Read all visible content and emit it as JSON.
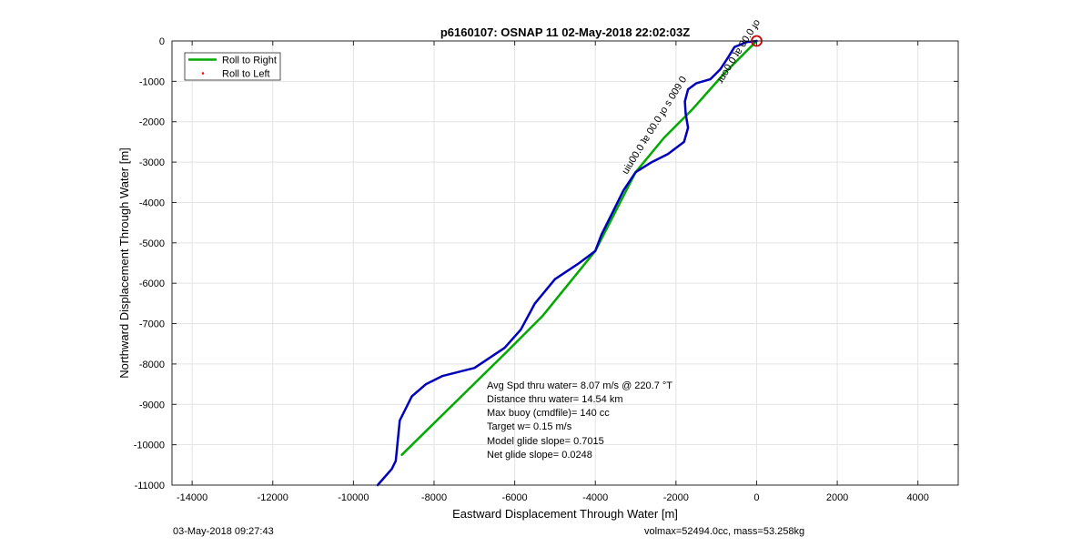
{
  "chart_data": {
    "type": "line",
    "title": "p6160107: OSNAP 11 02-May-2018 22:02:03Z",
    "xlabel": "Eastward Displacement Through Water [m]",
    "ylabel": "Northward Displacement Through Water [m]",
    "xlim": [
      -14500,
      5000
    ],
    "ylim": [
      -11000,
      0
    ],
    "xticks": [
      -14000,
      -12000,
      -10000,
      -8000,
      -6000,
      -4000,
      -2000,
      0,
      2000,
      4000
    ],
    "yticks": [
      0,
      -1000,
      -2000,
      -3000,
      -4000,
      -5000,
      -6000,
      -7000,
      -8000,
      -9000,
      -10000,
      -11000
    ],
    "grid": true,
    "legend_position": "top-left",
    "series": [
      {
        "name": "Roll to Right",
        "color": "#00aa00",
        "points": [
          [
            0,
            0
          ],
          [
            -800,
            -800
          ],
          [
            -1600,
            -1700
          ],
          [
            -2300,
            -2400
          ],
          [
            -3000,
            -3250
          ],
          [
            -4000,
            -5200
          ],
          [
            -5300,
            -6800
          ],
          [
            -6200,
            -7700
          ],
          [
            -8800,
            -10250
          ]
        ]
      },
      {
        "name": "Roll to Left",
        "color": "#ff0000",
        "points": []
      },
      {
        "name": "",
        "color": "#0000bb",
        "points": [
          [
            0,
            0
          ],
          [
            -250,
            -30
          ],
          [
            -550,
            -150
          ],
          [
            -700,
            -400
          ],
          [
            -900,
            -700
          ],
          [
            -1150,
            -950
          ],
          [
            -1500,
            -1050
          ],
          [
            -1700,
            -1200
          ],
          [
            -1780,
            -1500
          ],
          [
            -1760,
            -1800
          ],
          [
            -1700,
            -2150
          ],
          [
            -1800,
            -2500
          ],
          [
            -2200,
            -2800
          ],
          [
            -2600,
            -3000
          ],
          [
            -3000,
            -3250
          ],
          [
            -3300,
            -3700
          ],
          [
            -3550,
            -4200
          ],
          [
            -3850,
            -4800
          ],
          [
            -4000,
            -5200
          ],
          [
            -4400,
            -5500
          ],
          [
            -5000,
            -5900
          ],
          [
            -5500,
            -6500
          ],
          [
            -5850,
            -7150
          ],
          [
            -6250,
            -7600
          ],
          [
            -7000,
            -8100
          ],
          [
            -7800,
            -8300
          ],
          [
            -8200,
            -8500
          ],
          [
            -8550,
            -8800
          ],
          [
            -8850,
            -9400
          ],
          [
            -8900,
            -9900
          ],
          [
            -8950,
            -10400
          ],
          [
            -9050,
            -10600
          ],
          [
            -9400,
            -11000
          ]
        ]
      }
    ],
    "end_marker": {
      "x": 0,
      "y": 0,
      "color": "#cc0000"
    },
    "annotations": {
      "waypoint_label": "uiu00.0 ʇɐ 00.0 ɟo s 009 0",
      "waypoint_cluster_label": "ɹuo0.0 ʇɐ 00.0 ɟo"
    },
    "stats_box": [
      "Avg Spd thru water=  8.07 m/s @ 220.7 °T",
      "Distance thru water= 14.54 km",
      "Max buoy (cmdfile)= 140 cc",
      "Target w= 0.15 m/s",
      "Model glide slope= 0.7015",
      "Net glide slope= 0.0248"
    ]
  },
  "footer": {
    "left": "03-May-2018 09:27:43",
    "right": "volmax=52494.0cc, mass=53.258kg"
  }
}
